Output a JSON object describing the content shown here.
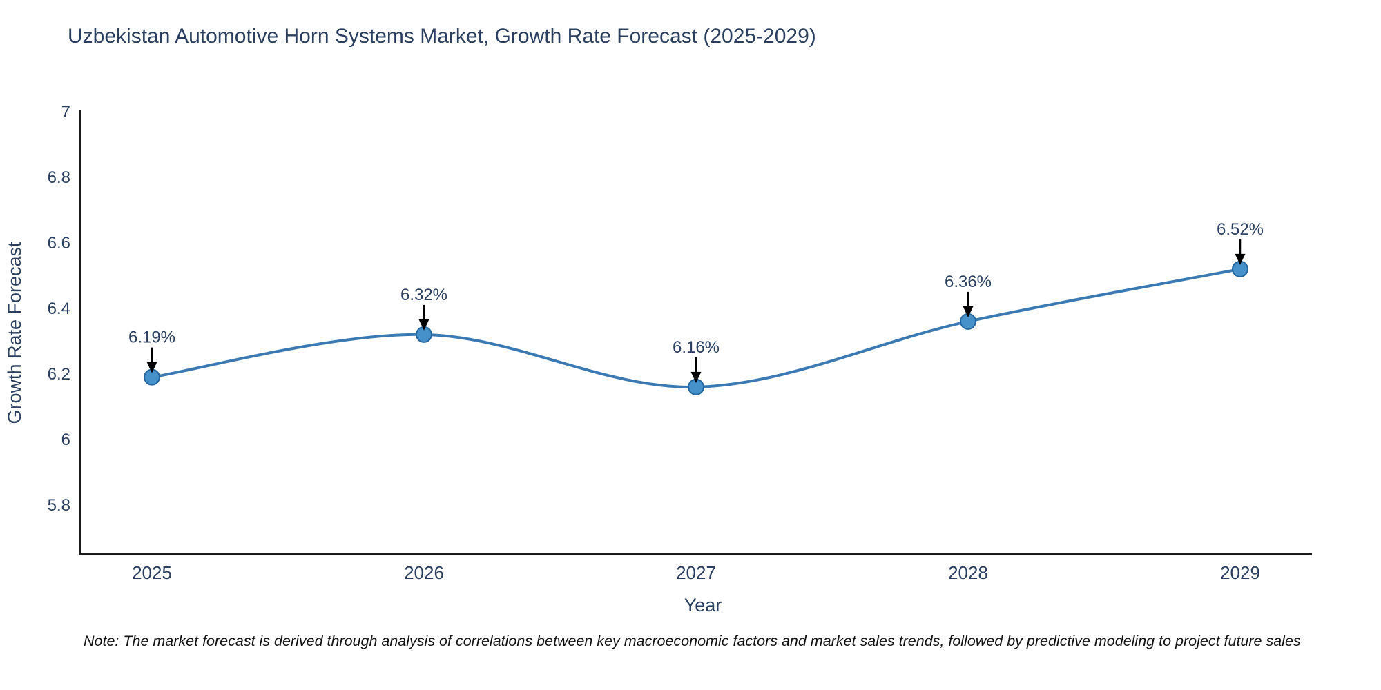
{
  "note": "Note: The market forecast is derived through analysis of correlations between key macroeconomic factors and market sales trends, followed by predictive modeling to project future sales",
  "chart_data": {
    "type": "line",
    "title": "Uzbekistan Automotive Horn Systems Market, Growth Rate Forecast (2025-2029)",
    "xlabel": "Year",
    "ylabel": "Growth Rate Forecast",
    "categories": [
      2025,
      2026,
      2027,
      2028,
      2029
    ],
    "values": [
      6.19,
      6.32,
      6.16,
      6.36,
      6.52
    ],
    "point_labels": [
      "6.19%",
      "6.32%",
      "6.16%",
      "6.36%",
      "6.52%"
    ],
    "xtick_labels": [
      "2025",
      "2026",
      "2027",
      "2028",
      "2029"
    ],
    "yticks": [
      5.8,
      6,
      6.2,
      6.4,
      6.6,
      6.8,
      7
    ],
    "ytick_labels": [
      "5.8",
      "6",
      "6.2",
      "6.4",
      "6.6",
      "6.8",
      "7"
    ],
    "ylim": [
      5.65,
      7.0
    ],
    "line_shape": "spline",
    "grid": false,
    "legend": false,
    "colors": {
      "line": "#3b79b2",
      "marker_fill": "#4791ca",
      "marker_edge": "#23669f",
      "arrow": "#000000",
      "text": "#2a3f5f",
      "axis": "#1a1a1a"
    }
  }
}
